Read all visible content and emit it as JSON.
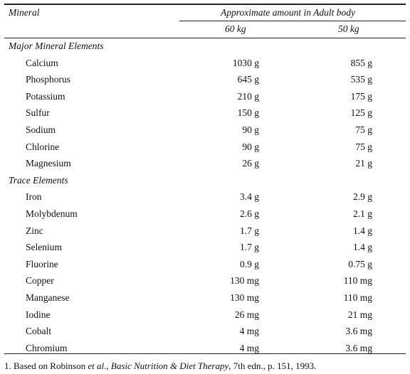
{
  "header": {
    "mineral": "Mineral",
    "group": "Approximate amount in Adult body",
    "col1": "60 kg",
    "col2": "50 kg"
  },
  "sections": [
    {
      "title": "Major Mineral Elements",
      "rows": [
        {
          "name": "Calcium",
          "v60": "1030 g",
          "v50": "855 g"
        },
        {
          "name": "Phosphorus",
          "v60": "645 g",
          "v50": "535 g"
        },
        {
          "name": "Potassium",
          "v60": "210 g",
          "v50": "175 g"
        },
        {
          "name": "Sulfur",
          "v60": "150 g",
          "v50": "125 g"
        },
        {
          "name": "Sodium",
          "v60": "90 g",
          "v50": "75 g"
        },
        {
          "name": "Chlorine",
          "v60": "90 g",
          "v50": "75 g"
        },
        {
          "name": "Magnesium",
          "v60": "26 g",
          "v50": "21 g"
        }
      ]
    },
    {
      "title": "Trace Elements",
      "rows": [
        {
          "name": "Iron",
          "v60": "3.4 g",
          "v50": "2.9 g"
        },
        {
          "name": "Molybdenum",
          "v60": "2.6 g",
          "v50": "2.1 g"
        },
        {
          "name": "Zinc",
          "v60": "1.7 g",
          "v50": "1.4 g"
        },
        {
          "name": "Selenium",
          "v60": "1.7 g",
          "v50": "1.4 g"
        },
        {
          "name": "Fluorine",
          "v60": "0.9 g",
          "v50": "0.75 g"
        },
        {
          "name": "Copper",
          "v60": "130 mg",
          "v50": "110 mg"
        },
        {
          "name": "Manganese",
          "v60": "130 mg",
          "v50": "110 mg"
        },
        {
          "name": "Iodine",
          "v60": "26 mg",
          "v50": "21 mg"
        },
        {
          "name": "Cobalt",
          "v60": "4 mg",
          "v50": "3.6 mg"
        },
        {
          "name": "Chromium",
          "v60": "4 mg",
          "v50": "3.6 mg"
        }
      ]
    }
  ],
  "footnote": {
    "prefix": "1. Based on Robinson ",
    "etal": "et al",
    "mid": "., ",
    "book": "Basic Nutrition & Diet Therapy",
    "suffix": ", 7th edn., p. 151, 1993."
  }
}
